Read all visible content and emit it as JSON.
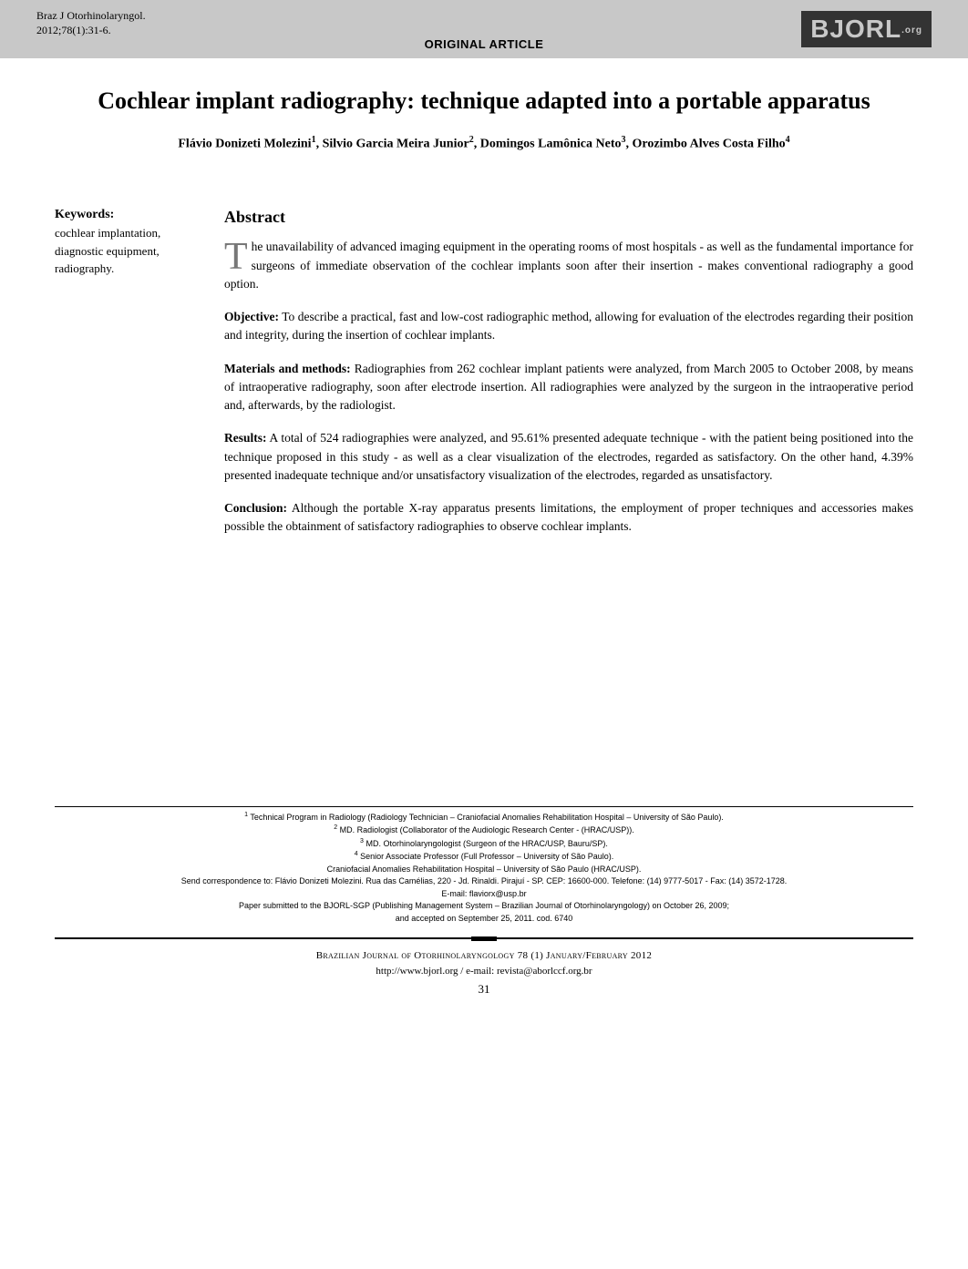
{
  "header": {
    "journal": "Braz J Otorhinolaryngol.",
    "issue": "2012;78(1):31-6.",
    "article_type": "ORIGINAL ARTICLE",
    "logo_main": "BJORL",
    "logo_suffix": ".org",
    "logo_bg": "#333333",
    "logo_fg": "#c8c8c8",
    "bar_bg": "#c8c8c8"
  },
  "title": "Cochlear implant radiography: technique adapted into a portable apparatus",
  "authors_html": "Flávio Donizeti Molezini<sup>1</sup>, Silvio Garcia Meira Junior<sup>2</sup>, Domingos Lamônica Neto<sup>3</sup>, Orozimbo Alves Costa Filho<sup>4</sup>",
  "keywords": {
    "heading": "Keywords:",
    "list": "cochlear implantation, diagnostic equipment, radiography."
  },
  "abstract": {
    "heading": "Abstract",
    "dropcap": "T",
    "intro_rest": "he unavailability of advanced imaging equipment in the operating rooms of most hospitals - as well as the fundamental importance for surgeons of immediate observation of the cochlear implants soon after their insertion - makes conventional radiography a good option.",
    "objective_label": "Objective:",
    "objective": " To describe a practical, fast and low-cost radiographic method, allowing for evaluation of the electrodes regarding their position and integrity, during the insertion of cochlear implants.",
    "methods_label": "Materials and methods:",
    "methods": " Radiographies from 262 cochlear implant patients were analyzed, from March 2005 to October 2008, by means of intraoperative radiography, soon after electrode insertion. All radiographies were analyzed by the surgeon in the intraoperative period and, afterwards, by the radiologist.",
    "results_label": "Results:",
    "results": " A total of 524 radiographies were analyzed, and 95.61% presented adequate technique - with the patient being positioned into the technique proposed in this study - as well as a clear visualization of the electrodes, regarded as satisfactory. On the other hand, 4.39% presented inadequate technique and/or unsatisfactory visualization of the electrodes, regarded as unsatisfactory.",
    "conclusion_label": "Conclusion:",
    "conclusion": " Although the portable X-ray apparatus presents limitations, the employment of proper techniques and accessories makes possible the obtainment of satisfactory radiographies to observe cochlear implants."
  },
  "affiliations": {
    "a1": "Technical Program in Radiology (Radiology Technician – Craniofacial Anomalies Rehabilitation Hospital – University of São Paulo).",
    "a2": "MD. Radiologist (Collaborator of the Audiologic Research Center - (HRAC/USP)).",
    "a3": "MD. Otorhinolaryngologist (Surgeon of the HRAC/USP, Bauru/SP).",
    "a4": "Senior Associate Professor (Full Professor – University of São Paulo).",
    "inst": "Craniofacial Anomalies Rehabilitation Hospital – University of São Paulo (HRAC/USP).",
    "correspondence": "Send correspondence to: Flávio Donizeti Molezini. Rua das Camélias, 220 - Jd. Rinaldi. Pirajuí - SP. CEP: 16600-000. Telefone: (14) 9777-5017 - Fax: (14) 3572-1728.",
    "email": "E-mail: flaviorx@usp.br",
    "submitted": "Paper submitted to the BJORL-SGP (Publishing Management System – Brazilian Journal of Otorhinolaryngology) on October 26, 2009;",
    "accepted": "and accepted on September 25, 2011. cod. 6740"
  },
  "footer": {
    "line1": "Brazilian Journal of Otorhinolaryngology 78 (1) January/February 2012",
    "line2": "http://www.bjorl.org  /  e-mail: revista@aborlccf.org.br",
    "page": "31"
  }
}
